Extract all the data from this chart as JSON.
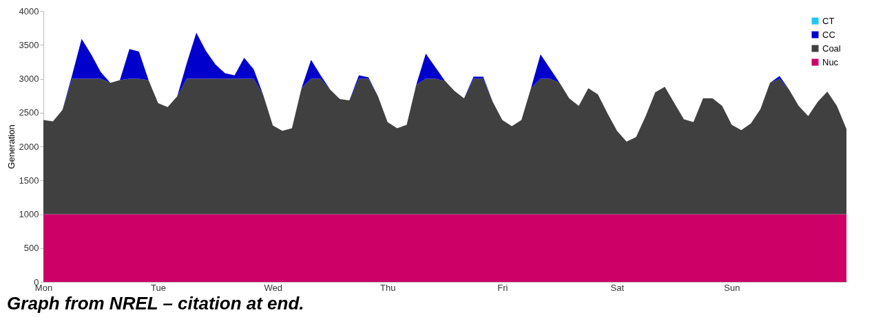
{
  "chart_data": {
    "type": "area",
    "stacked": true,
    "ylabel": "Generation",
    "annotations": [
      "Graph from NREL – citation at end."
    ],
    "categories": [
      "Mon",
      null,
      null,
      null,
      null,
      null,
      null,
      null,
      null,
      null,
      null,
      null,
      "Tue",
      null,
      null,
      null,
      null,
      null,
      null,
      null,
      null,
      null,
      null,
      null,
      "Wed",
      null,
      null,
      null,
      null,
      null,
      null,
      null,
      null,
      null,
      null,
      null,
      "Thu",
      null,
      null,
      null,
      null,
      null,
      null,
      null,
      null,
      null,
      null,
      null,
      "Fri",
      null,
      null,
      null,
      null,
      null,
      null,
      null,
      null,
      null,
      null,
      null,
      "Sat",
      null,
      null,
      null,
      null,
      null,
      null,
      null,
      null,
      null,
      null,
      null,
      "Sun",
      null,
      null,
      null,
      null,
      null,
      null,
      null,
      null,
      null,
      null,
      null,
      null
    ],
    "ylim": [
      0,
      4000
    ],
    "yticks": [
      0,
      500,
      1000,
      1500,
      2000,
      2500,
      3000,
      3500,
      4000
    ],
    "legend": "top right",
    "series": [
      {
        "name": "Nuc",
        "color": "#cc0066",
        "values": [
          1000,
          1000,
          1000,
          1000,
          1000,
          1000,
          1000,
          1000,
          1000,
          1000,
          1000,
          1000,
          1000,
          1000,
          1000,
          1000,
          1000,
          1000,
          1000,
          1000,
          1000,
          1000,
          1000,
          1000,
          1000,
          1000,
          1000,
          1000,
          1000,
          1000,
          1000,
          1000,
          1000,
          1000,
          1000,
          1000,
          1000,
          1000,
          1000,
          1000,
          1000,
          1000,
          1000,
          1000,
          1000,
          1000,
          1000,
          1000,
          1000,
          1000,
          1000,
          1000,
          1000,
          1000,
          1000,
          1000,
          1000,
          1000,
          1000,
          1000,
          1000,
          1000,
          1000,
          1000,
          1000,
          1000,
          1000,
          1000,
          1000,
          1000,
          1000,
          1000,
          1000,
          1000,
          1000,
          1000,
          1000,
          1000,
          1000,
          1000,
          1000,
          1000,
          1000,
          1000,
          1000
        ]
      },
      {
        "name": "Coal",
        "color": "#404040",
        "values": [
          1390,
          1370,
          1540,
          2000,
          2000,
          2000,
          2000,
          1940,
          1980,
          2000,
          2000,
          1980,
          1640,
          1580,
          1740,
          2000,
          2000,
          2000,
          2000,
          2000,
          2000,
          2000,
          2000,
          1760,
          1310,
          1230,
          1270,
          1860,
          2000,
          2000,
          1840,
          1700,
          1680,
          2000,
          2000,
          1740,
          1360,
          1270,
          1320,
          1910,
          2000,
          2000,
          1970,
          1820,
          1710,
          2000,
          2000,
          1660,
          1390,
          1300,
          1390,
          1860,
          2000,
          2000,
          1940,
          1710,
          1600,
          1860,
          1770,
          1490,
          1230,
          1070,
          1140,
          1450,
          1800,
          1880,
          1640,
          1400,
          1360,
          1710,
          1710,
          1600,
          1320,
          1240,
          1340,
          1550,
          1940,
          2000,
          1840,
          1600,
          1450,
          1660,
          1810,
          1600,
          1260
        ]
      },
      {
        "name": "CC",
        "color": "#0000cc",
        "values": [
          0,
          0,
          0,
          50,
          590,
          360,
          100,
          0,
          0,
          440,
          400,
          0,
          0,
          0,
          0,
          230,
          680,
          410,
          210,
          80,
          50,
          310,
          140,
          0,
          0,
          0,
          0,
          0,
          280,
          50,
          0,
          0,
          0,
          50,
          20,
          0,
          0,
          0,
          0,
          0,
          370,
          170,
          0,
          0,
          0,
          30,
          30,
          0,
          0,
          0,
          0,
          0,
          360,
          150,
          0,
          0,
          0,
          0,
          0,
          0,
          0,
          0,
          0,
          0,
          0,
          0,
          0,
          0,
          0,
          0,
          0,
          0,
          0,
          0,
          0,
          0,
          0,
          40,
          0,
          0,
          0,
          0,
          0,
          0,
          0
        ]
      },
      {
        "name": "CT",
        "color": "#1ec8f0",
        "values": [
          null,
          null,
          null,
          null,
          null,
          null,
          null,
          null,
          null,
          null,
          null,
          null,
          null,
          null,
          null,
          null,
          null,
          null,
          null,
          null,
          null,
          null,
          null,
          null,
          null,
          null,
          null,
          null,
          null,
          null,
          null,
          null,
          null,
          null,
          null,
          null,
          null,
          null,
          null,
          null,
          null,
          null,
          null,
          null,
          null,
          null,
          null,
          null,
          null,
          null,
          null,
          null,
          null,
          null,
          null,
          null,
          null,
          null,
          null,
          null,
          null,
          null,
          null,
          null,
          null,
          null,
          null,
          null,
          null,
          null,
          null,
          null,
          null,
          null,
          null,
          null,
          null,
          null,
          null,
          null,
          null,
          null,
          null,
          null,
          null
        ]
      }
    ]
  }
}
